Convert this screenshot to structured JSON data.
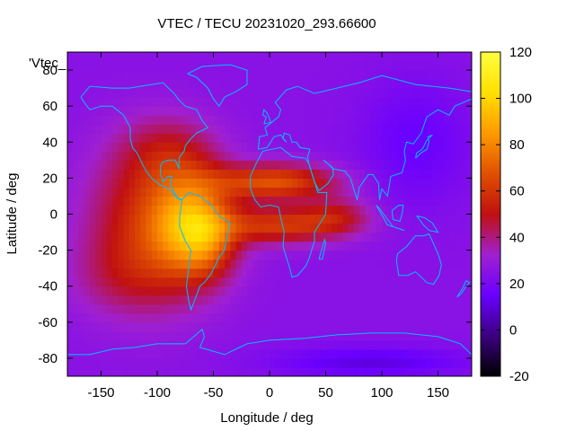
{
  "chart_data": {
    "type": "heatmap",
    "title": "VTEC / TECU 20231020_293.66600",
    "xlabel": "Longitude / deg",
    "ylabel": "Latitude / deg",
    "key_label": "'Vtec_",
    "xlim": [
      -180,
      180
    ],
    "ylim": [
      -90,
      90
    ],
    "xticks": [
      -150,
      -100,
      -50,
      0,
      50,
      100,
      150
    ],
    "yticks": [
      -80,
      -60,
      -40,
      -20,
      0,
      20,
      40,
      60,
      80
    ],
    "colorbar": {
      "range": [
        -20,
        120
      ],
      "ticks": [
        -20,
        0,
        20,
        40,
        60,
        80,
        100,
        120
      ],
      "palette": [
        "#000000",
        "#3b0080",
        "#6a00ff",
        "#a020d0",
        "#c01010",
        "#e05000",
        "#ff9a00",
        "#ffe000",
        "#ffff40"
      ]
    },
    "background_vtec": 25,
    "anomalies": [
      {
        "name": "americas-pacific-plume",
        "lon": -105,
        "lat": -5,
        "lon_sigma": 40,
        "lat_sigma": 30,
        "vtec": 32
      },
      {
        "name": "south-america-peak",
        "lon": -70,
        "lat": -5,
        "lon_sigma": 25,
        "lat_sigma": 20,
        "vtec": 42
      },
      {
        "name": "brazil-crest",
        "lon": -55,
        "lat": -15,
        "lon_sigma": 18,
        "lat_sigma": 14,
        "vtec": 20
      },
      {
        "name": "atlantic-africa-band-north",
        "lon": 5,
        "lat": 18,
        "lon_sigma": 38,
        "lat_sigma": 7,
        "vtec": 42
      },
      {
        "name": "atlantic-africa-band-south",
        "lon": 10,
        "lat": -6,
        "lon_sigma": 40,
        "lat_sigma": 7,
        "vtec": 35
      },
      {
        "name": "indian-ocean-tail",
        "lon": 60,
        "lat": 0,
        "lon_sigma": 22,
        "lat_sigma": 7,
        "vtec": 18
      },
      {
        "name": "north-america-mid",
        "lon": -90,
        "lat": 35,
        "lon_sigma": 30,
        "lat_sigma": 14,
        "vtec": 15
      },
      {
        "name": "southern-pacific-low",
        "lon": -130,
        "lat": -35,
        "lon_sigma": 35,
        "lat_sigma": 15,
        "vtec": 10
      },
      {
        "name": "south-polar-trough",
        "lon": 90,
        "lat": -82,
        "lon_sigma": 60,
        "lat_sigma": 6,
        "vtec": -14
      },
      {
        "name": "asia-nightside-low",
        "lon": 130,
        "lat": 40,
        "lon_sigma": 35,
        "lat_sigma": 25,
        "vtec": -10
      }
    ],
    "coastlines": [
      {
        "name": "north-america",
        "points": [
          [
            -168,
            65
          ],
          [
            -160,
            71
          ],
          [
            -140,
            70
          ],
          [
            -125,
            70
          ],
          [
            -95,
            73
          ],
          [
            -85,
            67
          ],
          [
            -80,
            63
          ],
          [
            -75,
            60
          ],
          [
            -65,
            58
          ],
          [
            -60,
            52
          ],
          [
            -55,
            48
          ],
          [
            -65,
            45
          ],
          [
            -70,
            42
          ],
          [
            -75,
            38
          ],
          [
            -76,
            35
          ],
          [
            -80,
            32
          ],
          [
            -81,
            27
          ],
          [
            -80,
            25
          ],
          [
            -82,
            27
          ],
          [
            -84,
            30
          ],
          [
            -90,
            30
          ],
          [
            -95,
            29
          ],
          [
            -97,
            27
          ],
          [
            -97,
            22
          ],
          [
            -95,
            18
          ],
          [
            -90,
            21
          ],
          [
            -87,
            21
          ],
          [
            -88,
            16
          ],
          [
            -84,
            11
          ],
          [
            -80,
            8
          ],
          [
            -78,
            8
          ],
          [
            -83,
            9
          ],
          [
            -86,
            12
          ],
          [
            -92,
            15
          ],
          [
            -97,
            16
          ],
          [
            -105,
            20
          ],
          [
            -110,
            24
          ],
          [
            -115,
            30
          ],
          [
            -118,
            34
          ],
          [
            -122,
            37
          ],
          [
            -124,
            42
          ],
          [
            -124,
            48
          ],
          [
            -130,
            55
          ],
          [
            -140,
            60
          ],
          [
            -150,
            60
          ],
          [
            -160,
            58
          ],
          [
            -165,
            62
          ],
          [
            -168,
            65
          ]
        ]
      },
      {
        "name": "greenland",
        "points": [
          [
            -73,
            78
          ],
          [
            -60,
            82
          ],
          [
            -35,
            83
          ],
          [
            -20,
            80
          ],
          [
            -20,
            72
          ],
          [
            -30,
            68
          ],
          [
            -40,
            65
          ],
          [
            -45,
            60
          ],
          [
            -50,
            64
          ],
          [
            -55,
            70
          ],
          [
            -65,
            76
          ],
          [
            -73,
            78
          ]
        ]
      },
      {
        "name": "south-america",
        "points": [
          [
            -78,
            8
          ],
          [
            -72,
            12
          ],
          [
            -62,
            10
          ],
          [
            -52,
            5
          ],
          [
            -45,
            -1
          ],
          [
            -35,
            -5
          ],
          [
            -38,
            -13
          ],
          [
            -40,
            -20
          ],
          [
            -45,
            -24
          ],
          [
            -48,
            -28
          ],
          [
            -52,
            -33
          ],
          [
            -58,
            -38
          ],
          [
            -62,
            -40
          ],
          [
            -65,
            -45
          ],
          [
            -68,
            -50
          ],
          [
            -70,
            -53
          ],
          [
            -72,
            -48
          ],
          [
            -74,
            -40
          ],
          [
            -72,
            -30
          ],
          [
            -70,
            -20
          ],
          [
            -75,
            -15
          ],
          [
            -80,
            -7
          ],
          [
            -80,
            -2
          ],
          [
            -78,
            8
          ]
        ]
      },
      {
        "name": "africa",
        "points": [
          [
            -17,
            21
          ],
          [
            -12,
            28
          ],
          [
            -6,
            35
          ],
          [
            10,
            37
          ],
          [
            20,
            32
          ],
          [
            32,
            31
          ],
          [
            35,
            28
          ],
          [
            43,
            12
          ],
          [
            51,
            12
          ],
          [
            50,
            0
          ],
          [
            40,
            -10
          ],
          [
            40,
            -15
          ],
          [
            35,
            -25
          ],
          [
            32,
            -29
          ],
          [
            25,
            -34
          ],
          [
            20,
            -35
          ],
          [
            18,
            -30
          ],
          [
            12,
            -18
          ],
          [
            13,
            -10
          ],
          [
            10,
            -2
          ],
          [
            8,
            4
          ],
          [
            0,
            5
          ],
          [
            -8,
            4
          ],
          [
            -13,
            8
          ],
          [
            -17,
            14
          ],
          [
            -17,
            21
          ]
        ]
      },
      {
        "name": "eurasia",
        "points": [
          [
            -10,
            36
          ],
          [
            -9,
            43
          ],
          [
            -2,
            44
          ],
          [
            -4,
            48
          ],
          [
            2,
            51
          ],
          [
            8,
            54
          ],
          [
            10,
            58
          ],
          [
            5,
            62
          ],
          [
            15,
            69
          ],
          [
            25,
            71
          ],
          [
            40,
            67
          ],
          [
            60,
            70
          ],
          [
            80,
            73
          ],
          [
            100,
            77
          ],
          [
            130,
            72
          ],
          [
            160,
            70
          ],
          [
            180,
            68
          ],
          [
            180,
            64
          ],
          [
            165,
            60
          ],
          [
            160,
            55
          ],
          [
            150,
            58
          ],
          [
            140,
            54
          ],
          [
            135,
            45
          ],
          [
            128,
            39
          ],
          [
            122,
            40
          ],
          [
            120,
            35
          ],
          [
            121,
            30
          ],
          [
            118,
            23
          ],
          [
            108,
            21
          ],
          [
            105,
            10
          ],
          [
            100,
            14
          ],
          [
            98,
            8
          ],
          [
            97,
            17
          ],
          [
            92,
            22
          ],
          [
            88,
            22
          ],
          [
            80,
            15
          ],
          [
            78,
            8
          ],
          [
            72,
            20
          ],
          [
            67,
            24
          ],
          [
            57,
            25
          ],
          [
            52,
            28
          ],
          [
            48,
            30
          ],
          [
            56,
            26
          ],
          [
            57,
            22
          ],
          [
            52,
            17
          ],
          [
            44,
            13
          ],
          [
            40,
            18
          ],
          [
            35,
            28
          ],
          [
            34,
            32
          ],
          [
            36,
            36
          ],
          [
            27,
            37
          ],
          [
            24,
            40
          ],
          [
            20,
            40
          ],
          [
            18,
            44
          ],
          [
            13,
            45
          ],
          [
            12,
            42
          ],
          [
            15,
            40
          ],
          [
            10,
            44
          ],
          [
            4,
            43
          ],
          [
            -2,
            37
          ],
          [
            -10,
            36
          ]
        ]
      },
      {
        "name": "australia",
        "points": [
          [
            114,
            -22
          ],
          [
            122,
            -18
          ],
          [
            130,
            -12
          ],
          [
            137,
            -12
          ],
          [
            142,
            -11
          ],
          [
            145,
            -15
          ],
          [
            150,
            -22
          ],
          [
            153,
            -28
          ],
          [
            151,
            -34
          ],
          [
            146,
            -39
          ],
          [
            140,
            -38
          ],
          [
            135,
            -35
          ],
          [
            130,
            -32
          ],
          [
            123,
            -34
          ],
          [
            115,
            -34
          ],
          [
            113,
            -26
          ],
          [
            114,
            -22
          ]
        ]
      },
      {
        "name": "antarctica",
        "points": [
          [
            -180,
            -84
          ],
          [
            -180,
            -78
          ],
          [
            -160,
            -78
          ],
          [
            -140,
            -75
          ],
          [
            -120,
            -74
          ],
          [
            -100,
            -72
          ],
          [
            -75,
            -72
          ],
          [
            -60,
            -64
          ],
          [
            -58,
            -68
          ],
          [
            -62,
            -74
          ],
          [
            -40,
            -78
          ],
          [
            -20,
            -72
          ],
          [
            0,
            -70
          ],
          [
            30,
            -69
          ],
          [
            60,
            -67
          ],
          [
            90,
            -66
          ],
          [
            120,
            -66
          ],
          [
            150,
            -68
          ],
          [
            170,
            -72
          ],
          [
            180,
            -78
          ],
          [
            180,
            -84
          ]
        ]
      },
      {
        "name": "uk",
        "points": [
          [
            -5,
            50
          ],
          [
            1,
            51
          ],
          [
            0,
            53
          ],
          [
            -2,
            56
          ],
          [
            -5,
            58
          ],
          [
            -6,
            55
          ],
          [
            -3,
            54
          ],
          [
            -5,
            50
          ]
        ]
      },
      {
        "name": "japan",
        "points": [
          [
            130,
            31
          ],
          [
            135,
            34
          ],
          [
            140,
            36
          ],
          [
            142,
            40
          ],
          [
            141,
            43
          ],
          [
            145,
            44
          ],
          [
            140,
            41
          ],
          [
            136,
            36
          ],
          [
            131,
            34
          ],
          [
            130,
            31
          ]
        ]
      },
      {
        "name": "madagascar",
        "points": [
          [
            44,
            -25
          ],
          [
            49,
            -14
          ],
          [
            50,
            -16
          ],
          [
            47,
            -25
          ],
          [
            44,
            -25
          ]
        ]
      },
      {
        "name": "new-zealand",
        "points": [
          [
            167,
            -46
          ],
          [
            172,
            -41
          ],
          [
            175,
            -37
          ],
          [
            178,
            -38
          ],
          [
            174,
            -41
          ],
          [
            171,
            -44
          ],
          [
            167,
            -46
          ]
        ]
      },
      {
        "name": "indonesia",
        "points": [
          [
            95,
            5
          ],
          [
            105,
            -6
          ],
          [
            115,
            -8
          ],
          [
            120,
            -9
          ],
          [
            110,
            -7
          ],
          [
            104,
            -2
          ],
          [
            98,
            3
          ],
          [
            95,
            5
          ]
        ]
      },
      {
        "name": "borneo",
        "points": [
          [
            109,
            2
          ],
          [
            115,
            5
          ],
          [
            119,
            5
          ],
          [
            118,
            0
          ],
          [
            116,
            -4
          ],
          [
            110,
            -3
          ],
          [
            109,
            2
          ]
        ]
      },
      {
        "name": "new-guinea",
        "points": [
          [
            131,
            -1
          ],
          [
            138,
            -2
          ],
          [
            145,
            -5
          ],
          [
            150,
            -10
          ],
          [
            142,
            -9
          ],
          [
            137,
            -6
          ],
          [
            131,
            -1
          ]
        ]
      }
    ]
  }
}
